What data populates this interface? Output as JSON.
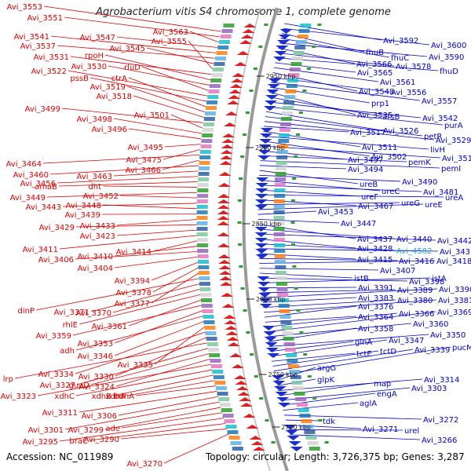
{
  "title": "Agrobacterium vitis S4 chromosome 1, complete genome",
  "footer": {
    "accession": "Accession: NC_011989",
    "topology": "Topology: circular; Length: 3,726,375 bp; Genes: 3,287"
  },
  "colors": {
    "left_label": "#dd0000",
    "right_label": "#0000cc",
    "highlight": "#2aa7d8",
    "rna_label": "#cc0000",
    "backbone": "#888888"
  },
  "scale_marks": [
    "2950 kbp",
    "2900 kbp",
    "2850 kbp",
    "2800 kbp",
    "2750 kbp",
    "2700 kbp"
  ],
  "left_labels": [
    "Avi_3553",
    "Avi_3551",
    "Avi_3563",
    "Avi_3547",
    "Avi_3541",
    "Avi_3537",
    "Avi_3545",
    "Avi_3555",
    "Avi_3531",
    "rpoH",
    "Avi_3530",
    "rluD",
    "Avi_3522",
    "pssB",
    "ctrA",
    "Avi_3519",
    "Avi_3518",
    "Avi_3499",
    "Avi_3501",
    "Avi_3498",
    "Avi_3496",
    "Avi_3495",
    "Avi_3475",
    "Avi_3464",
    "Avi_3466",
    "Avi_3460",
    "Avi_3463",
    "Avi_3456",
    "amaB",
    "dht",
    "Avi_3449",
    "Avi_3452",
    "Avi_3443",
    "Avi_3448",
    "Avi_3439",
    "Avi_3433",
    "Avi_3429",
    "Avi_3423",
    "Avi_3411",
    "Avi_3414",
    "Avi_3410",
    "Avi_3406",
    "Avi_3404",
    "Avi_3394",
    "Avi_3378",
    "Avi_3377",
    "dinP",
    "Avi_3371",
    "Avi_3370",
    "rhlE",
    "Avi_3361",
    "Avi_3359",
    "Avi_3353",
    "adh",
    "Avi_3346",
    "Avi_3335",
    "Avi_3334",
    "Avi_3330",
    "lrp",
    "Avi_3327",
    "guaD",
    "Avi_3324",
    "Avi_3323",
    "xdhC",
    "xdhB",
    "xdhA",
    "bdhA",
    "Avi_3311",
    "Avi_3306",
    "Avi_3301",
    "Avi_3299",
    "ade",
    "Avi_3295",
    "braC",
    "Avi_3290",
    "Avi_3270"
  ],
  "right_labels": [
    "Avi_3592",
    "Avi_3600",
    "fhuB",
    "fhuC",
    "Avi_3590",
    "Avi_3566",
    "Avi_3578",
    "fhuD",
    "Avi_3565",
    "Avi_3561",
    "Avi_3548",
    "Avi_3556",
    "Avi_3557",
    "prp1",
    "Avi_3535",
    "arsB",
    "Avi_3542",
    "purA",
    "Avi_3526",
    "petR",
    "Avi_3529",
    "Avi_3517",
    "Avi_3511",
    "livH",
    "Avi_3502",
    "Avi_3512",
    "Avi_3497",
    "pemK",
    "pemI",
    "Avi_3494",
    "ureB",
    "Avi_3490",
    "ureC",
    "Avi_3481",
    "ureF",
    "ureA",
    "Avi_3467",
    "ureG",
    "ureE",
    "Avi_3453",
    "Avi_3447",
    "Avi_3437",
    "Avi_3440",
    "Avi_3442",
    "Avi_3428",
    "Avi_4582",
    "Avi_3431",
    "Avi_3415",
    "Avi_3416",
    "Avi_3418",
    "Avi_3407",
    "istB",
    "Avi_3398",
    "istA",
    "Avi_3391",
    "Avi_3389",
    "Avi_3390",
    "Avi_3383",
    "Avi_3380",
    "Avi_3381",
    "Avi_3376",
    "Avi_3364",
    "Avi_3366",
    "Avi_3369",
    "Avi_3360",
    "Avi_3358",
    "Avi_3350",
    "glnA",
    "Avi_3347",
    "tctE",
    "tctD",
    "Avi_3339",
    "pucM",
    "argG",
    "glpK",
    "Avi_3314",
    "map",
    "Avi_3303",
    "engA",
    "aglA",
    "Avi_3272",
    "tdk",
    "Avi_3271",
    "urel",
    "Avi_3266"
  ]
}
